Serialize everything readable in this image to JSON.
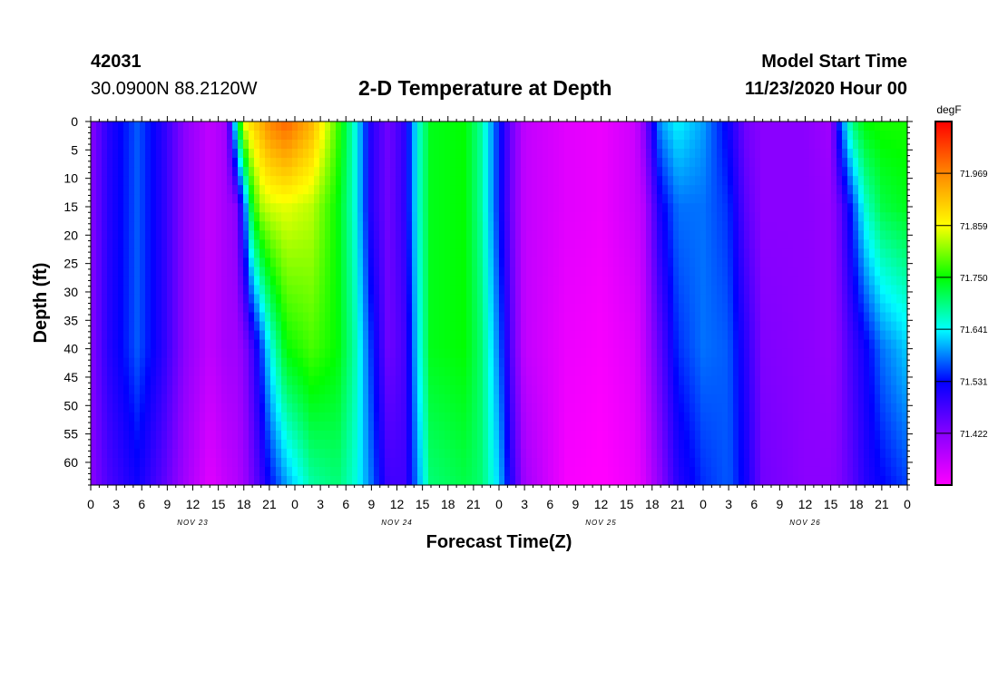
{
  "header": {
    "station_id": "42031",
    "coords": "30.0900N 88.2120W",
    "title": "2-D Temperature at Depth",
    "model_label": "Model Start Time",
    "model_time": "11/23/2020 Hour 00"
  },
  "chart_data": {
    "type": "heatmap",
    "title": "2-D Temperature at Depth",
    "xlabel": "Forecast Time(Z)",
    "ylabel": "Depth (ft)",
    "x_hours_range": [
      0,
      96
    ],
    "x_tick_step_hours": 3,
    "x_tick_labels": [
      "0",
      "3",
      "6",
      "9",
      "12",
      "15",
      "18",
      "21",
      "0",
      "3",
      "6",
      "9",
      "12",
      "15",
      "18",
      "21",
      "0",
      "3",
      "6",
      "9",
      "12",
      "15",
      "18",
      "21",
      "0",
      "3",
      "6",
      "9",
      "12",
      "15",
      "18",
      "21",
      "0"
    ],
    "date_labels": [
      {
        "label": "NOV 23",
        "hour": 12
      },
      {
        "label": "NOV 24",
        "hour": 36
      },
      {
        "label": "NOV 25",
        "hour": 60
      },
      {
        "label": "NOV 26",
        "hour": 84
      }
    ],
    "y_ticks": [
      0,
      5,
      10,
      15,
      20,
      25,
      30,
      35,
      40,
      45,
      50,
      55,
      60
    ],
    "ylim": [
      0,
      64
    ],
    "y_inverted": true,
    "colorbar": {
      "unit": "degF",
      "labels": [
        "71.969",
        "71.859",
        "71.750",
        "71.641",
        "71.531",
        "71.422"
      ],
      "min": 71.313,
      "max": 72.078,
      "colors": [
        "#ff00ff",
        "#8800ff",
        "#0000ff",
        "#00ffff",
        "#00ff00",
        "#ffff00",
        "#ff8800",
        "#ff0000"
      ]
    },
    "field_profiles": [
      {
        "hour": 0,
        "values": [
          71.42,
          71.42,
          71.42,
          71.42
        ]
      },
      {
        "hour": 2,
        "values": [
          71.5,
          71.5,
          71.5,
          71.47
        ]
      },
      {
        "hour": 5.5,
        "values": [
          71.57,
          71.57,
          71.57,
          71.52
        ]
      },
      {
        "hour": 8.5,
        "values": [
          71.5,
          71.5,
          71.5,
          71.46
        ]
      },
      {
        "hour": 11,
        "values": [
          71.42,
          71.42,
          71.42,
          71.4
        ]
      },
      {
        "hour": 14,
        "values": [
          71.37,
          71.37,
          71.37,
          71.34
        ]
      },
      {
        "hour": 16,
        "values": [
          71.4,
          71.4,
          71.4,
          71.37
        ]
      },
      {
        "hour": 17,
        "values": [
          71.64,
          71.42,
          71.4,
          71.38
        ]
      },
      {
        "hour": 18,
        "values": [
          71.86,
          71.55,
          71.42,
          71.4
        ]
      },
      {
        "hour": 19,
        "values": [
          71.9,
          71.75,
          71.48,
          71.44
        ]
      },
      {
        "hour": 20,
        "values": [
          71.93,
          71.82,
          71.55,
          71.48
        ]
      },
      {
        "hour": 21,
        "values": [
          71.97,
          71.84,
          71.64,
          71.53
        ]
      },
      {
        "hour": 23,
        "values": [
          72.0,
          71.85,
          71.75,
          71.6
        ]
      },
      {
        "hour": 26,
        "values": [
          71.93,
          71.83,
          71.78,
          71.68
        ]
      },
      {
        "hour": 29,
        "values": [
          71.78,
          71.75,
          71.75,
          71.7
        ]
      },
      {
        "hour": 31,
        "values": [
          71.66,
          71.66,
          71.68,
          71.66
        ]
      },
      {
        "hour": 33,
        "values": [
          71.5,
          71.5,
          71.55,
          71.58
        ]
      },
      {
        "hour": 35,
        "values": [
          71.44,
          71.44,
          71.44,
          71.48
        ]
      },
      {
        "hour": 37,
        "values": [
          71.5,
          71.5,
          71.48,
          71.48
        ]
      },
      {
        "hour": 38.5,
        "values": [
          71.66,
          71.66,
          71.64,
          71.6
        ]
      },
      {
        "hour": 40,
        "values": [
          71.74,
          71.74,
          71.74,
          71.7
        ]
      },
      {
        "hour": 44,
        "values": [
          71.75,
          71.75,
          71.75,
          71.72
        ]
      },
      {
        "hour": 46,
        "values": [
          71.68,
          71.68,
          71.7,
          71.7
        ]
      },
      {
        "hour": 48,
        "values": [
          71.54,
          71.54,
          71.58,
          71.62
        ]
      },
      {
        "hour": 49.5,
        "values": [
          71.44,
          71.44,
          71.46,
          71.5
        ]
      },
      {
        "hour": 51,
        "values": [
          71.37,
          71.37,
          71.37,
          71.4
        ]
      },
      {
        "hour": 56,
        "values": [
          71.34,
          71.34,
          71.33,
          71.32
        ]
      },
      {
        "hour": 60,
        "values": [
          71.33,
          71.33,
          71.32,
          71.31
        ]
      },
      {
        "hour": 64,
        "values": [
          71.36,
          71.36,
          71.34,
          71.33
        ]
      },
      {
        "hour": 65,
        "values": [
          71.42,
          71.38,
          71.37,
          71.35
        ]
      },
      {
        "hour": 67,
        "values": [
          71.6,
          71.52,
          71.46,
          71.42
        ]
      },
      {
        "hour": 69,
        "values": [
          71.64,
          71.58,
          71.55,
          71.5
        ]
      },
      {
        "hour": 72,
        "values": [
          71.6,
          71.58,
          71.58,
          71.55
        ]
      },
      {
        "hour": 75,
        "values": [
          71.52,
          71.55,
          71.57,
          71.57
        ]
      },
      {
        "hour": 77,
        "values": [
          71.44,
          71.46,
          71.5,
          71.52
        ]
      },
      {
        "hour": 79,
        "values": [
          71.42,
          71.42,
          71.43,
          71.44
        ]
      },
      {
        "hour": 84,
        "values": [
          71.42,
          71.42,
          71.42,
          71.42
        ]
      },
      {
        "hour": 87,
        "values": [
          71.4,
          71.41,
          71.41,
          71.42
        ]
      },
      {
        "hour": 88,
        "values": [
          71.55,
          71.45,
          71.43,
          71.43
        ]
      },
      {
        "hour": 89.5,
        "values": [
          71.7,
          71.55,
          71.48,
          71.46
        ]
      },
      {
        "hour": 91,
        "values": [
          71.75,
          71.66,
          71.52,
          71.5
        ]
      },
      {
        "hour": 93,
        "values": [
          71.76,
          71.72,
          71.58,
          71.53
        ]
      },
      {
        "hour": 96,
        "values": [
          71.76,
          71.74,
          71.62,
          71.56
        ]
      }
    ],
    "profile_depths": [
      0,
      15,
      40,
      64
    ]
  }
}
